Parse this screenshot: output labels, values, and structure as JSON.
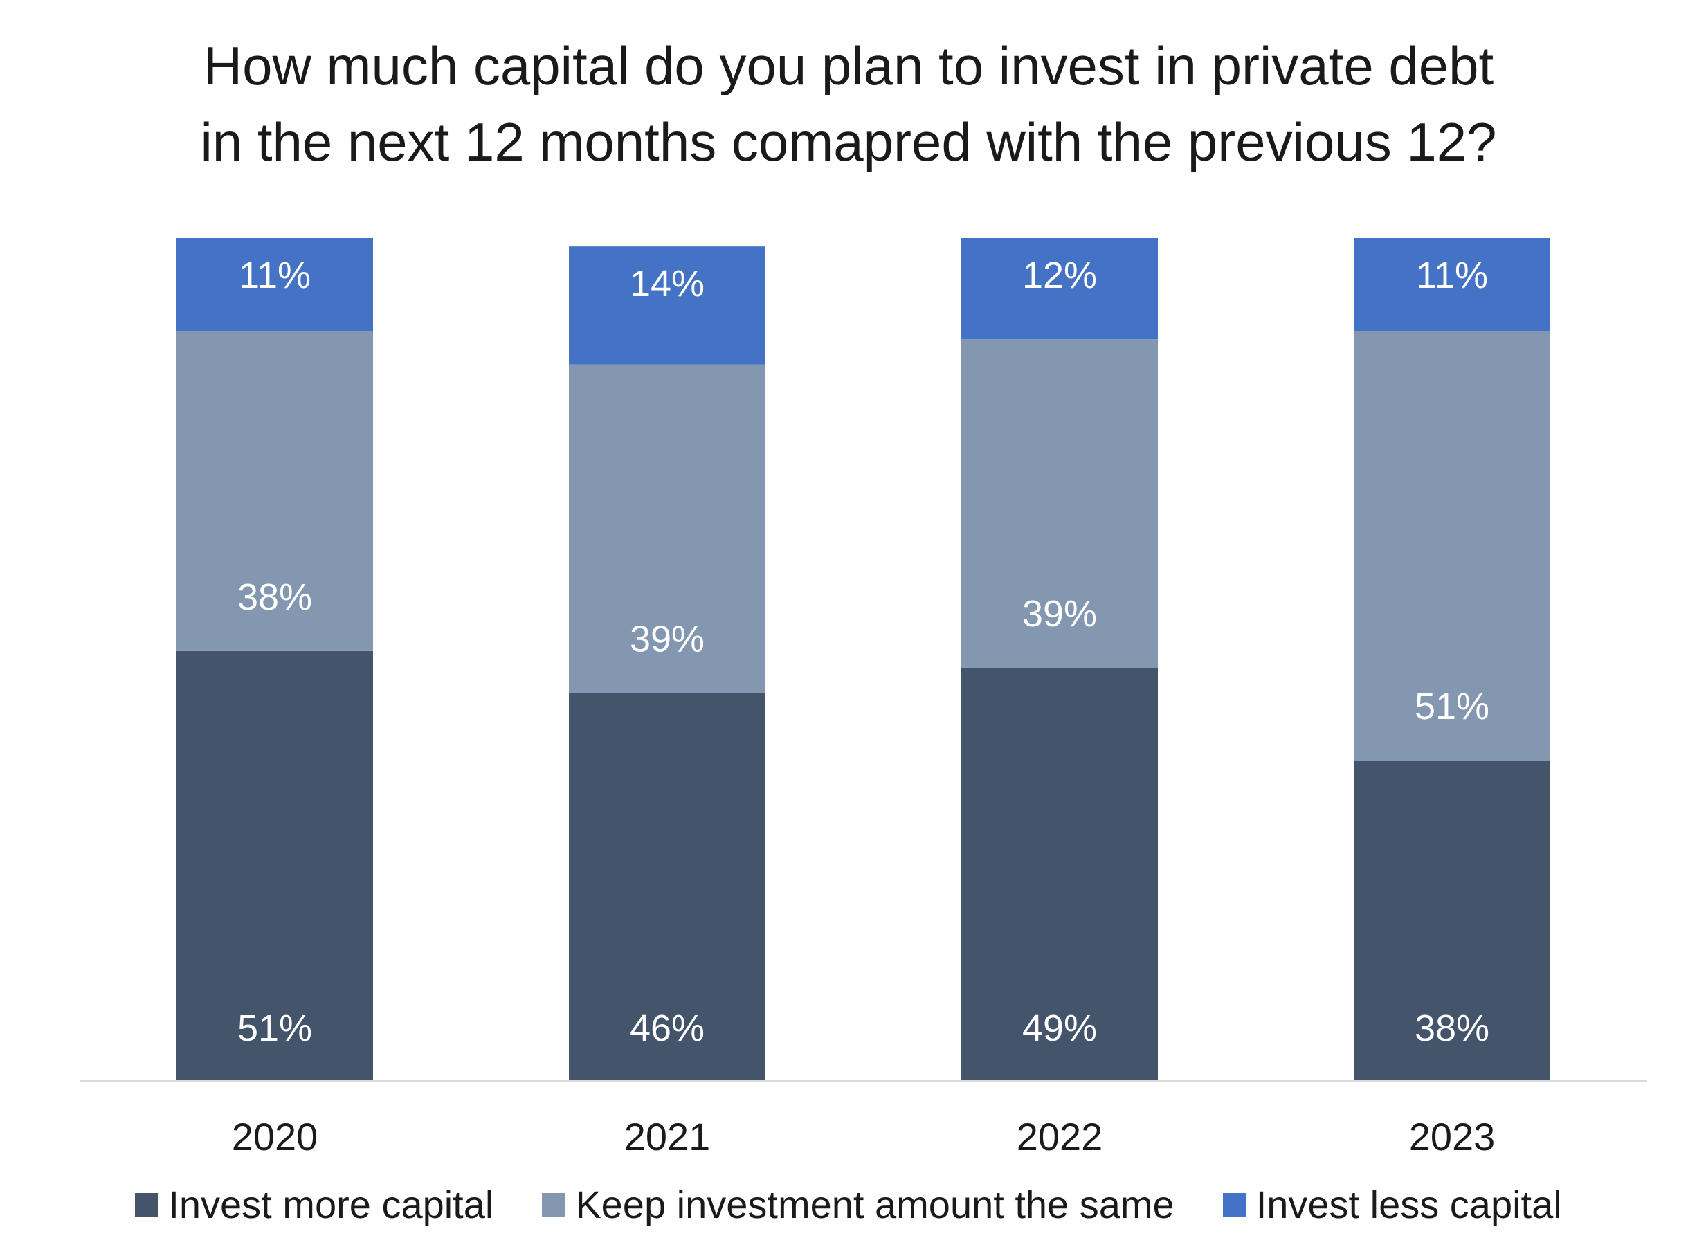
{
  "title_lines": [
    "How much capital do you plan to invest in private debt",
    "in the next 12 months comapred with the previous 12?"
  ],
  "colors": {
    "invest_more": "#44546a",
    "keep_same": "#8497b0",
    "invest_less": "#4472c4",
    "axis": "#d9d9d9",
    "label_inside": "#ffffff"
  },
  "chart_data": {
    "type": "bar",
    "stacked": true,
    "categories": [
      "2020",
      "2021",
      "2022",
      "2023"
    ],
    "series": [
      {
        "name": "Invest more capital",
        "values": [
          51,
          46,
          49,
          38
        ],
        "labels": [
          "51%",
          "46%",
          "49%",
          "38%"
        ]
      },
      {
        "name": "Keep investment amount the same",
        "values": [
          38,
          39,
          39,
          51
        ],
        "labels": [
          "38%",
          "39%",
          "39%",
          "51%"
        ]
      },
      {
        "name": "Invest less capital",
        "values": [
          11,
          14,
          12,
          11
        ],
        "labels": [
          "11%",
          "14%",
          "12%",
          "11%"
        ]
      }
    ],
    "title": "How much capital do you plan to invest in private debt in the next 12 months comapred with the previous 12?",
    "xlabel": "",
    "ylabel": "",
    "ylim": [
      0,
      100
    ],
    "grid": false,
    "legend_position": "bottom"
  }
}
